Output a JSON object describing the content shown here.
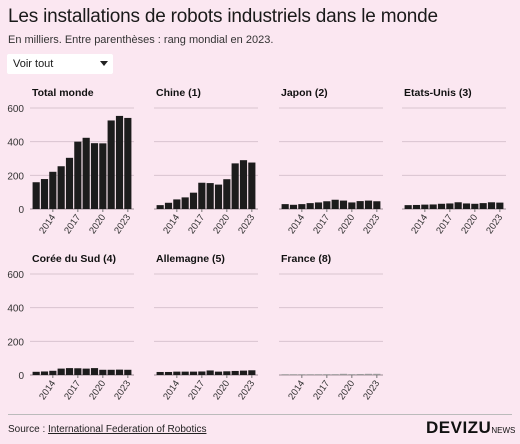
{
  "header": {
    "title": "Les installations de robots industriels dans le monde",
    "subtitle": "En milliers. Entre parenthèses : rang mondial en 2023."
  },
  "dropdown": {
    "selected": "Voir tout"
  },
  "footer": {
    "source_prefix": "Source : ",
    "source_link": "International Federation of Robotics",
    "brand": "DEVIZU",
    "brand_suffix": "NEWS"
  },
  "colors": {
    "bar": "#1c1c1c",
    "grid": "#d9c4cf",
    "background": "#fbe7f1",
    "bar_low": "#9a9a9a"
  },
  "chart_data": [
    {
      "type": "bar",
      "title": "Total monde",
      "categories": [
        "2012",
        "2013",
        "2014",
        "2015",
        "2016",
        "2017",
        "2018",
        "2019",
        "2020",
        "2021",
        "2022",
        "2023"
      ],
      "xticks": [
        "2014",
        "2017",
        "2020",
        "2023"
      ],
      "yticks": [
        "0",
        "200",
        "400",
        "600"
      ],
      "ylim": [
        0,
        600
      ],
      "values": [
        159,
        178,
        221,
        254,
        304,
        400,
        423,
        391,
        390,
        526,
        553,
        541
      ]
    },
    {
      "type": "bar",
      "title": "Chine (1)",
      "categories": [
        "2012",
        "2013",
        "2014",
        "2015",
        "2016",
        "2017",
        "2018",
        "2019",
        "2020",
        "2021",
        "2022",
        "2023"
      ],
      "xticks": [
        "2014",
        "2017",
        "2020",
        "2023"
      ],
      "yticks": [
        "0",
        "200",
        "400",
        "600"
      ],
      "ylim": [
        0,
        600
      ],
      "values": [
        23,
        37,
        57,
        69,
        97,
        156,
        154,
        145,
        177,
        271,
        290,
        276
      ]
    },
    {
      "type": "bar",
      "title": "Japon (2)",
      "categories": [
        "2012",
        "2013",
        "2014",
        "2015",
        "2016",
        "2017",
        "2018",
        "2019",
        "2020",
        "2021",
        "2022",
        "2023"
      ],
      "xticks": [
        "2014",
        "2017",
        "2020",
        "2023"
      ],
      "yticks": [
        "0",
        "200",
        "400",
        "600"
      ],
      "ylim": [
        0,
        600
      ],
      "values": [
        29,
        25,
        29,
        35,
        39,
        46,
        55,
        50,
        39,
        47,
        50,
        46
      ]
    },
    {
      "type": "bar",
      "title": "Etats-Unis (3)",
      "categories": [
        "2012",
        "2013",
        "2014",
        "2015",
        "2016",
        "2017",
        "2018",
        "2019",
        "2020",
        "2021",
        "2022",
        "2023"
      ],
      "xticks": [
        "2014",
        "2017",
        "2020",
        "2023"
      ],
      "yticks": [
        "0",
        "200",
        "400",
        "600"
      ],
      "ylim": [
        0,
        600
      ],
      "values": [
        23,
        24,
        26,
        27,
        31,
        33,
        40,
        33,
        31,
        35,
        40,
        38
      ]
    },
    {
      "type": "bar",
      "title": "Corée du Sud (4)",
      "categories": [
        "2012",
        "2013",
        "2014",
        "2015",
        "2016",
        "2017",
        "2018",
        "2019",
        "2020",
        "2021",
        "2022",
        "2023"
      ],
      "xticks": [
        "2014",
        "2017",
        "2020",
        "2023"
      ],
      "yticks": [
        "0",
        "200",
        "400",
        "600"
      ],
      "ylim": [
        0,
        600
      ],
      "values": [
        19,
        21,
        25,
        38,
        41,
        40,
        38,
        41,
        31,
        31,
        32,
        31
      ]
    },
    {
      "type": "bar",
      "title": "Allemagne (5)",
      "categories": [
        "2012",
        "2013",
        "2014",
        "2015",
        "2016",
        "2017",
        "2018",
        "2019",
        "2020",
        "2021",
        "2022",
        "2023"
      ],
      "xticks": [
        "2014",
        "2017",
        "2020",
        "2023"
      ],
      "yticks": [
        "0",
        "200",
        "400",
        "600"
      ],
      "ylim": [
        0,
        600
      ],
      "values": [
        18,
        18,
        20,
        20,
        20,
        21,
        27,
        20,
        22,
        24,
        26,
        28
      ]
    },
    {
      "type": "bar",
      "title": "France (8)",
      "categories": [
        "2012",
        "2013",
        "2014",
        "2015",
        "2016",
        "2017",
        "2018",
        "2019",
        "2020",
        "2021",
        "2022",
        "2023"
      ],
      "xticks": [
        "2014",
        "2017",
        "2020",
        "2023"
      ],
      "yticks": [
        "0",
        "200",
        "400",
        "600"
      ],
      "ylim": [
        0,
        600
      ],
      "values": [
        3,
        2,
        3,
        3,
        4,
        5,
        5,
        7,
        5,
        6,
        7,
        7
      ]
    }
  ]
}
